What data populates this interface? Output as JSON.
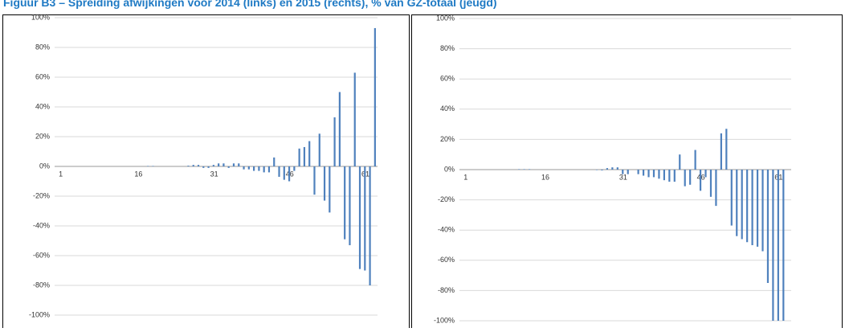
{
  "title": "Figuur B3 – Spreiding afwijkingen voor 2014 (links) en 2015 (rechts), % van GZ-totaal (jeugd)",
  "chart_data": [
    {
      "type": "bar",
      "color": "#4f81bd",
      "ylim": [
        -100,
        100
      ],
      "grid": true,
      "yticks": [
        {
          "value": -100,
          "label": "-100%"
        },
        {
          "value": -80,
          "label": "-80%"
        },
        {
          "value": -60,
          "label": "-60%"
        },
        {
          "value": -40,
          "label": "-40%"
        },
        {
          "value": -20,
          "label": "-20%"
        },
        {
          "value": 0,
          "label": "0%"
        },
        {
          "value": 20,
          "label": "20%"
        },
        {
          "value": 40,
          "label": "40%"
        },
        {
          "value": 60,
          "label": "60%"
        },
        {
          "value": 80,
          "label": "80%"
        },
        {
          "value": 100,
          "label": "100%"
        }
      ],
      "categories": [
        "1",
        null,
        null,
        null,
        null,
        null,
        null,
        null,
        null,
        null,
        null,
        null,
        null,
        null,
        null,
        "16",
        null,
        null,
        null,
        null,
        null,
        null,
        null,
        null,
        null,
        null,
        null,
        null,
        null,
        null,
        "31",
        null,
        null,
        null,
        null,
        null,
        null,
        null,
        null,
        null,
        null,
        null,
        null,
        null,
        null,
        "46",
        null,
        null,
        null,
        null,
        null,
        null,
        null,
        null,
        null,
        null,
        null,
        null,
        null,
        null,
        "61",
        null,
        null,
        null
      ],
      "values": [
        0,
        0,
        0,
        0,
        0,
        0,
        0,
        0,
        0,
        0,
        0,
        0,
        0,
        0,
        0,
        0,
        0,
        0,
        0.3,
        0.3,
        0,
        0,
        0,
        0,
        0,
        0,
        0.5,
        1,
        1,
        -1,
        -1,
        1,
        2,
        2,
        -1,
        2,
        2,
        -2,
        -2,
        -3,
        -3,
        -4,
        -4,
        6,
        -7,
        -9,
        -10,
        -3,
        12,
        13,
        17,
        -19,
        22,
        -23,
        -31,
        33,
        50,
        -49,
        -53,
        63,
        -69,
        -70,
        -80,
        93
      ]
    },
    {
      "type": "bar",
      "color": "#4f81bd",
      "ylim": [
        -100,
        100
      ],
      "grid": true,
      "yticks": [
        {
          "value": -100,
          "label": "-100%"
        },
        {
          "value": -80,
          "label": "-80%"
        },
        {
          "value": -60,
          "label": "-60%"
        },
        {
          "value": -40,
          "label": "-40%"
        },
        {
          "value": -20,
          "label": "-20%"
        },
        {
          "value": 0,
          "label": "0%"
        },
        {
          "value": 20,
          "label": "20%"
        },
        {
          "value": 40,
          "label": "40%"
        },
        {
          "value": 60,
          "label": "60%"
        },
        {
          "value": 80,
          "label": "80%"
        },
        {
          "value": 100,
          "label": "100%"
        }
      ],
      "categories": [
        "1",
        null,
        null,
        null,
        null,
        null,
        null,
        null,
        null,
        null,
        null,
        null,
        null,
        null,
        null,
        "16",
        null,
        null,
        null,
        null,
        null,
        null,
        null,
        null,
        null,
        null,
        null,
        null,
        null,
        null,
        "31",
        null,
        null,
        null,
        null,
        null,
        null,
        null,
        null,
        null,
        null,
        null,
        null,
        null,
        null,
        "46",
        null,
        null,
        null,
        null,
        null,
        null,
        null,
        null,
        null,
        null,
        null,
        null,
        null,
        null,
        "61",
        null,
        null,
        null
      ],
      "values": [
        0,
        0,
        0,
        0,
        0,
        0,
        0,
        0,
        0,
        0,
        0,
        0.3,
        0.3,
        0.3,
        0,
        0,
        0,
        0,
        0,
        0,
        0,
        0,
        0,
        0,
        0,
        0,
        -0.3,
        -0.5,
        1,
        1.5,
        1.5,
        -3,
        -3,
        0,
        -3,
        -4,
        -5,
        -5,
        -6,
        -7,
        -8,
        -8,
        10,
        -11,
        -10,
        13,
        -14,
        -5,
        -18,
        -24,
        24,
        27,
        -37,
        -44,
        -46,
        -48,
        -50,
        -51,
        -54,
        -75,
        -100,
        -100,
        -100,
        0
      ]
    }
  ]
}
